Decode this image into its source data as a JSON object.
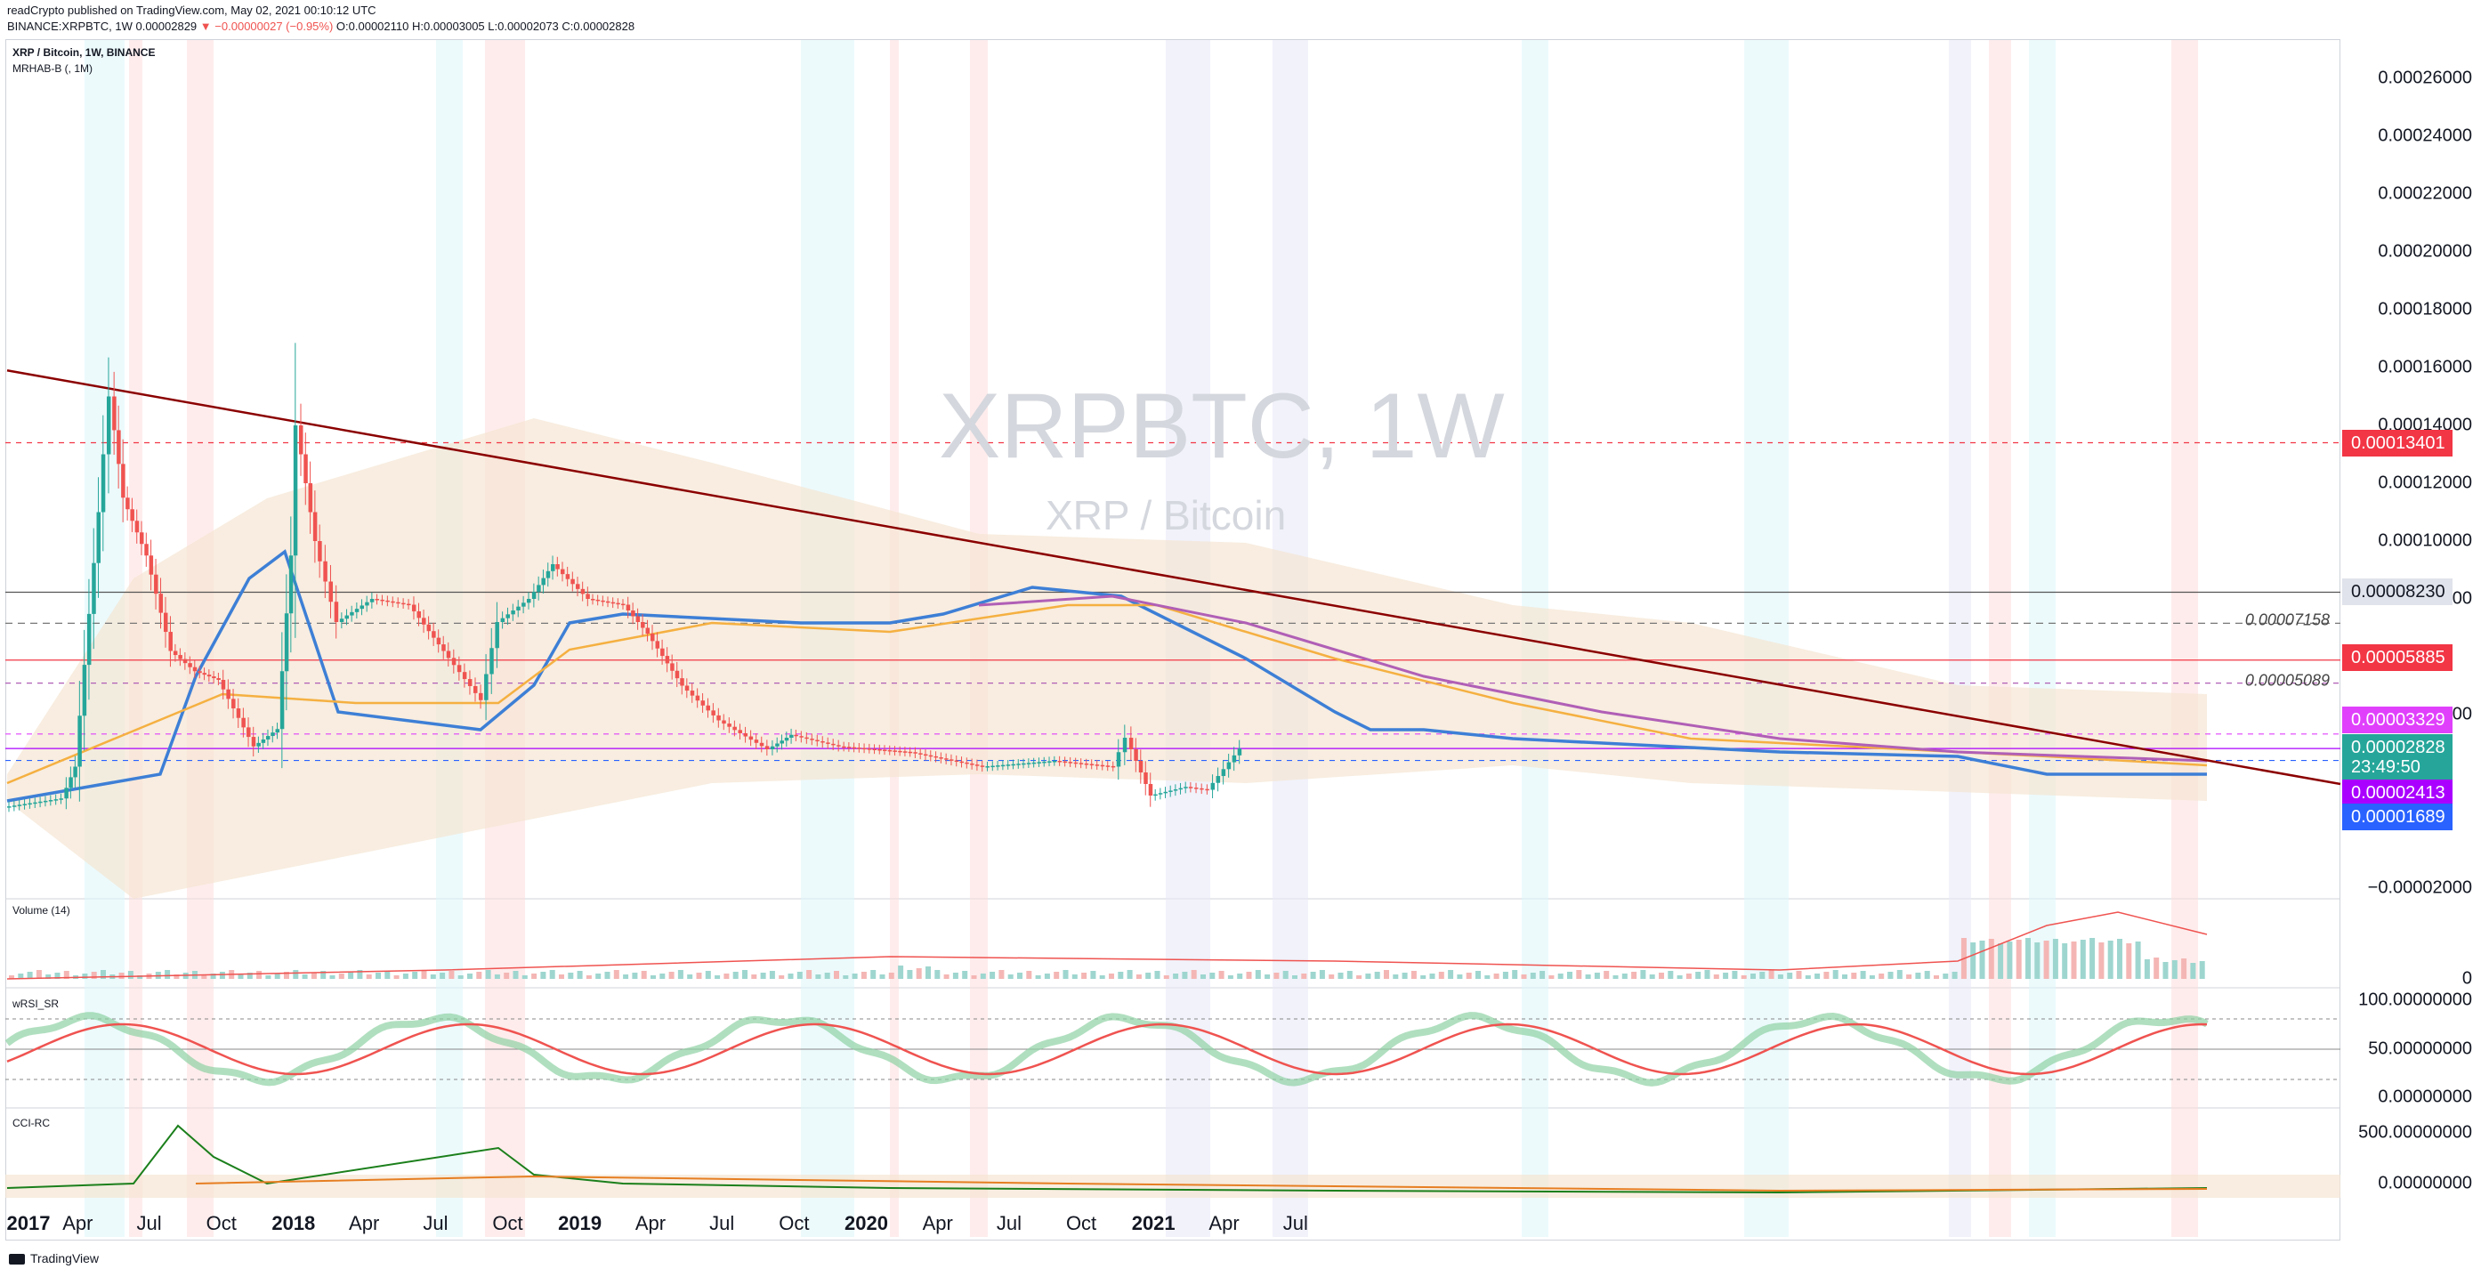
{
  "header": {
    "published": "readCrypto published on TradingView.com, May 02, 2021 00:10:12 UTC",
    "symbol_line": "BINANCE:XRPBTC, 1W",
    "open_price": "0.00002829",
    "change": "−0.00000027 (−0.95%)",
    "ohlc": "O:0.00002110 H:0.00003005 L:0.00002073 C:0.00002828"
  },
  "watermark": {
    "title": "XRPBTC, 1W",
    "subtitle": "XRP / Bitcoin"
  },
  "panes": {
    "main_title": "XRP / Bitcoin, 1W, BINANCE",
    "main_indicator": "MRHAB-B (, 1M)",
    "volume": "Volume (14)",
    "rsi": "wRSI_SR",
    "cci": "CCI-RC"
  },
  "price_axis": [
    "0.00026000",
    "0.00024000",
    "0.00022000",
    "0.00020000",
    "0.00018000",
    "0.00016000",
    "0.00014000",
    "0.00012000",
    "0.00010000",
    "0.00008000",
    "0.00004000",
    "−0.00002000"
  ],
  "price_tags": [
    {
      "value": "0.00013401",
      "color": "#f23645"
    },
    {
      "value": "0.00008230",
      "color": "#e0e3eb"
    },
    {
      "value": "0.00005885",
      "color": "#f23645"
    },
    {
      "value": "0.00003329",
      "color": "#e040fb"
    },
    {
      "value": "0.00002828",
      "color": "#26a69a"
    },
    {
      "value": "23:49:50",
      "color": "#26a69a"
    },
    {
      "value": "0.00002413",
      "color": "#aa00ff"
    },
    {
      "value": "0.00001689",
      "color": "#2962ff"
    }
  ],
  "line_labels": [
    "0.00007158",
    "0.00005089"
  ],
  "volume_axis": [
    "0"
  ],
  "rsi_axis": [
    "100.00000000",
    "50.00000000",
    "0.00000000"
  ],
  "cci_axis": [
    "500.00000000",
    "0.00000000"
  ],
  "time_axis": [
    "2017",
    "Apr",
    "Jul",
    "Oct",
    "2018",
    "Apr",
    "Jul",
    "Oct",
    "2019",
    "Apr",
    "Jul",
    "Oct",
    "2020",
    "Apr",
    "Jul",
    "Oct",
    "2021",
    "Apr",
    "Jul"
  ],
  "footer": {
    "logo": "TradingView"
  },
  "colors": {
    "up": "#26a69a",
    "down": "#ef5350",
    "trend": "#8b0000",
    "ema_blue": "#3d7fd6",
    "ema_orange": "#f5b041",
    "ema_purple": "#b05fb6",
    "cloud": "#f5e6d3"
  },
  "chart_data": {
    "type": "candlestick",
    "title": "XRP / Bitcoin, 1W, BINANCE",
    "x_range": [
      "2017-01",
      "2021-07"
    ],
    "y_range": [
      -2e-05,
      0.00026
    ],
    "weekly_close": [
      [
        "2017-01-01",
        8e-06
      ],
      [
        "2017-03-15",
        1.1e-05
      ],
      [
        "2017-04-01",
        2.2e-05
      ],
      [
        "2017-05-01",
        0.00011
      ],
      [
        "2017-05-15",
        0.00015
      ],
      [
        "2017-06-01",
        0.000115
      ],
      [
        "2017-07-01",
        9.5e-05
      ],
      [
        "2017-08-01",
        6.2e-05
      ],
      [
        "2017-09-01",
        5.5e-05
      ],
      [
        "2017-10-01",
        5.2e-05
      ],
      [
        "2017-11-15",
        2.9e-05
      ],
      [
        "2017-12-15",
        3.5e-05
      ],
      [
        "2018-01-01",
        9.5e-05
      ],
      [
        "2018-01-08",
        0.00014
      ],
      [
        "2018-02-01",
        0.0001
      ],
      [
        "2018-03-01",
        7.2e-05
      ],
      [
        "2018-04-15",
        8e-05
      ],
      [
        "2018-06-01",
        7.8e-05
      ],
      [
        "2018-07-15",
        6.2e-05
      ],
      [
        "2018-09-01",
        4.5e-05
      ],
      [
        "2018-09-22",
        7.2e-05
      ],
      [
        "2018-11-01",
        8e-05
      ],
      [
        "2018-12-01",
        9.2e-05
      ],
      [
        "2019-01-15",
        8e-05
      ],
      [
        "2019-03-01",
        7.8e-05
      ],
      [
        "2019-04-01",
        6.8e-05
      ],
      [
        "2019-05-15",
        5e-05
      ],
      [
        "2019-07-01",
        3.8e-05
      ],
      [
        "2019-09-01",
        2.8e-05
      ],
      [
        "2019-10-01",
        3.3e-05
      ],
      [
        "2019-12-01",
        2.9e-05
      ],
      [
        "2020-03-01",
        2.7e-05
      ],
      [
        "2020-06-01",
        2.2e-05
      ],
      [
        "2020-09-01",
        2.4e-05
      ],
      [
        "2020-11-15",
        2.2e-05
      ],
      [
        "2020-12-01",
        3.2e-05
      ],
      [
        "2021-01-01",
        1.2e-05
      ],
      [
        "2021-02-15",
        1.5e-05
      ],
      [
        "2021-03-15",
        1.4e-05
      ],
      [
        "2021-04-25",
        2.828e-05
      ]
    ],
    "horizontal_levels": [
      0.00013401,
      8.23e-05,
      7.158e-05,
      5.885e-05,
      5.089e-05,
      3.329e-05,
      2.828e-05,
      2.413e-05,
      1.689e-05
    ],
    "trendline": [
      [
        "2017-01-01",
        0.000159
      ],
      [
        "2021-05-15",
        1.7e-05
      ]
    ]
  }
}
